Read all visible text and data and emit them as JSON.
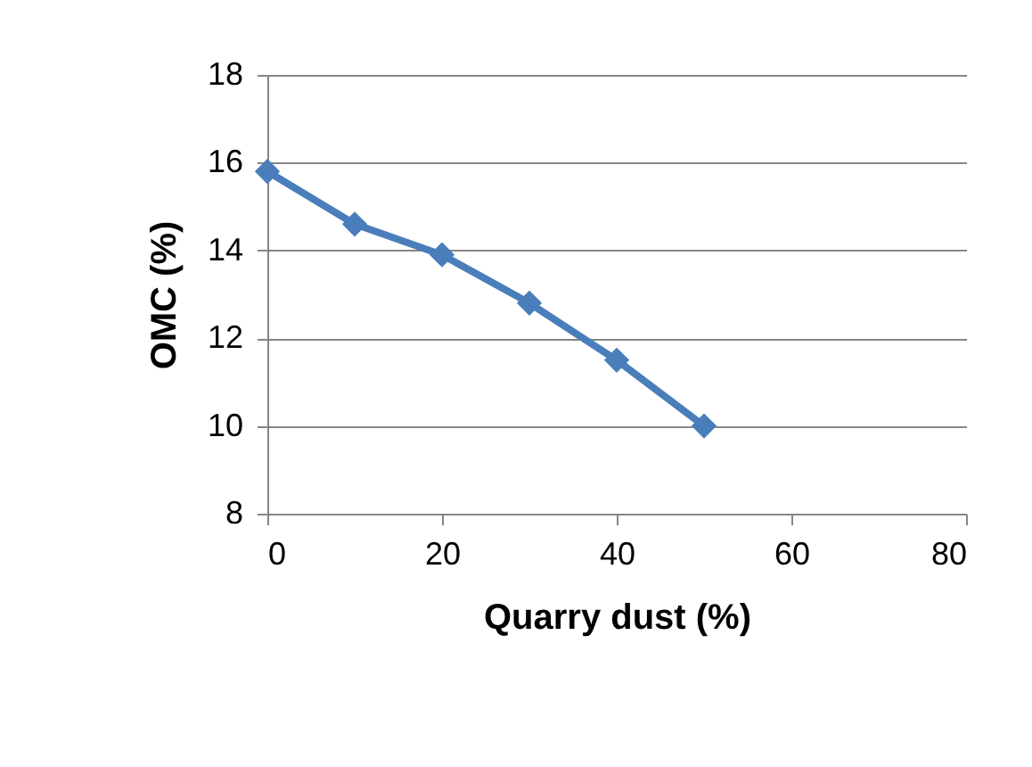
{
  "chart_data": {
    "type": "line",
    "xlabel": "Quarry dust (%)",
    "ylabel": "OMC (%)",
    "x": [
      0,
      10,
      20,
      30,
      40,
      50
    ],
    "series": [
      {
        "color": "#4a7ebb",
        "values": [
          15.8,
          14.6,
          13.9,
          12.8,
          11.5,
          10.0
        ]
      }
    ],
    "xlim": [
      0,
      80
    ],
    "xticks": [
      0,
      20,
      40,
      60,
      80
    ],
    "ylim": [
      8,
      18
    ],
    "yticks": [
      8,
      10,
      12,
      14,
      16,
      18
    ],
    "grid": "y",
    "marker": "diamond",
    "line_style": "solid"
  }
}
